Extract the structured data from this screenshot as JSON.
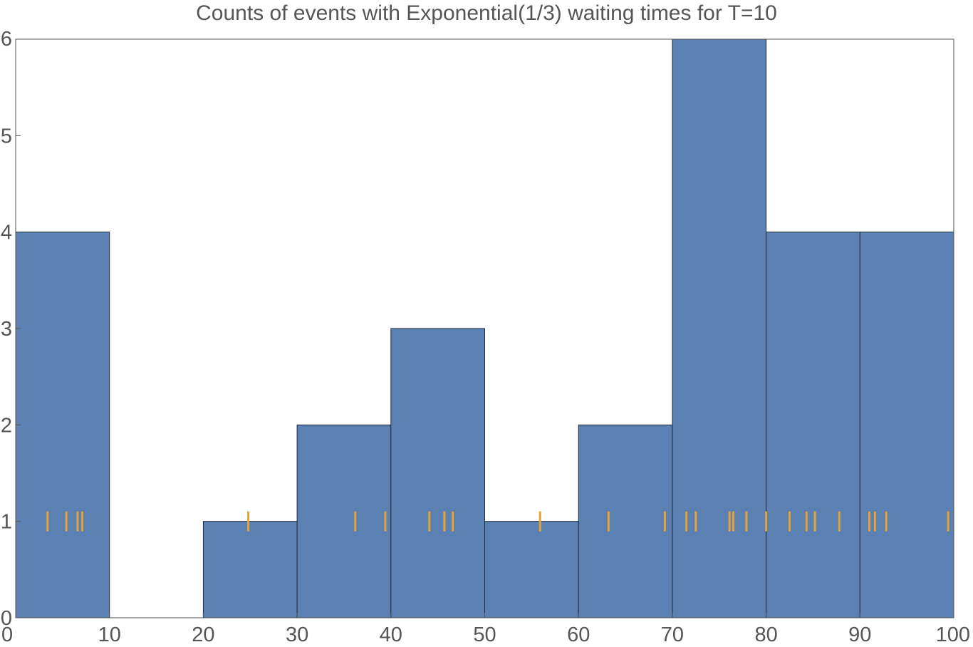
{
  "chart_data": {
    "type": "bar",
    "title": "Counts of events with Exponential(1/3) waiting times for T=10",
    "xlabel": "",
    "ylabel": "",
    "xlim": [
      0,
      100
    ],
    "ylim": [
      0,
      6
    ],
    "grid": false,
    "x_ticks": [
      "0",
      "10",
      "20",
      "30",
      "40",
      "50",
      "60",
      "70",
      "80",
      "90",
      "100"
    ],
    "y_ticks": [
      "0",
      "1",
      "2",
      "3",
      "4",
      "5",
      "6"
    ],
    "bins": [
      {
        "start": 0,
        "end": 10,
        "count": 4
      },
      {
        "start": 10,
        "end": 20,
        "count": 0
      },
      {
        "start": 20,
        "end": 30,
        "count": 1
      },
      {
        "start": 30,
        "end": 40,
        "count": 2
      },
      {
        "start": 40,
        "end": 50,
        "count": 3
      },
      {
        "start": 50,
        "end": 60,
        "count": 1
      },
      {
        "start": 60,
        "end": 70,
        "count": 2
      },
      {
        "start": 70,
        "end": 80,
        "count": 6
      },
      {
        "start": 80,
        "end": 90,
        "count": 4
      },
      {
        "start": 90,
        "end": 100,
        "count": 4
      }
    ],
    "event_marks_level": 1,
    "event_times": [
      3.4,
      5.4,
      6.6,
      7.1,
      24.8,
      36.2,
      39.4,
      44.1,
      45.7,
      46.6,
      55.9,
      63.2,
      69.2,
      71.5,
      72.5,
      76.1,
      76.5,
      77.9,
      80.0,
      82.5,
      84.3,
      85.2,
      87.8,
      91.0,
      91.6,
      92.8,
      99.4
    ],
    "bar_color": "#5b80b2",
    "mark_color": "#e5a23a"
  }
}
